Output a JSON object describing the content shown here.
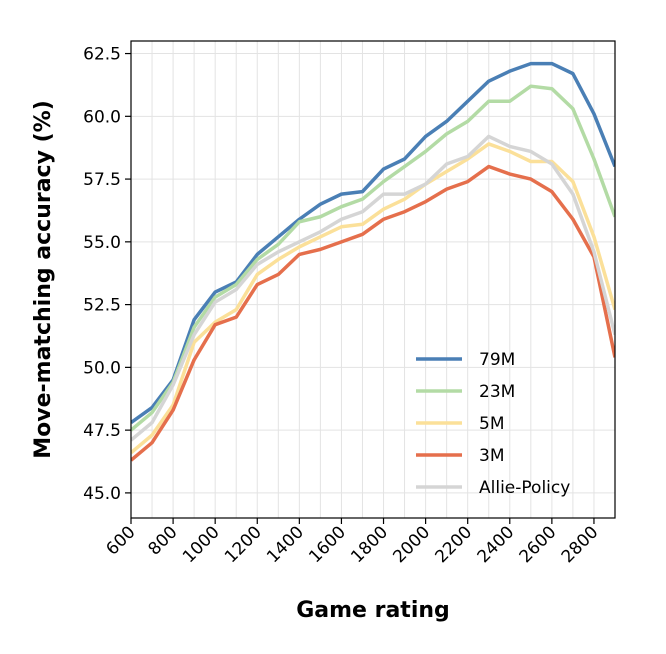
{
  "chart_data": {
    "type": "line",
    "xlabel": "Game rating",
    "ylabel": "Move-matching accuracy (%)",
    "xlim": [
      600,
      2900
    ],
    "ylim": [
      44,
      63
    ],
    "x_ticks": [
      600,
      800,
      1000,
      1200,
      1400,
      1600,
      1800,
      2000,
      2200,
      2400,
      2600,
      2800
    ],
    "y_ticks": [
      "45.0",
      "47.5",
      "50.0",
      "52.5",
      "55.0",
      "57.5",
      "60.0",
      "62.5"
    ],
    "grid": true,
    "legend_position": "lower-right",
    "x": [
      600,
      700,
      800,
      900,
      1000,
      1100,
      1200,
      1300,
      1400,
      1500,
      1600,
      1700,
      1800,
      1900,
      2000,
      2100,
      2200,
      2300,
      2400,
      2500,
      2600,
      2700,
      2800,
      2900
    ],
    "series": [
      {
        "name": "79M",
        "color": "#4a7fb5",
        "values": [
          47.8,
          48.4,
          49.5,
          51.9,
          53.0,
          53.4,
          54.5,
          55.2,
          55.9,
          56.5,
          56.9,
          57.0,
          57.9,
          58.3,
          59.2,
          59.8,
          60.6,
          61.4,
          61.8,
          62.1,
          62.1,
          61.7,
          60.1,
          58.0
        ]
      },
      {
        "name": "23M",
        "color": "#b3dba5",
        "values": [
          47.5,
          48.2,
          49.4,
          51.6,
          52.8,
          53.3,
          54.3,
          54.9,
          55.8,
          56.0,
          56.4,
          56.7,
          57.4,
          58.0,
          58.6,
          59.3,
          59.8,
          60.6,
          60.6,
          61.2,
          61.1,
          60.3,
          58.3,
          56.0
        ]
      },
      {
        "name": "5M",
        "color": "#fbe099",
        "values": [
          46.6,
          47.3,
          48.5,
          51.0,
          51.8,
          52.3,
          53.7,
          54.3,
          54.8,
          55.2,
          55.6,
          55.7,
          56.3,
          56.7,
          57.3,
          57.8,
          58.3,
          58.9,
          58.6,
          58.2,
          58.2,
          57.4,
          55.2,
          52.3
        ]
      },
      {
        "name": "3M",
        "color": "#e56f4c",
        "values": [
          46.3,
          47.0,
          48.3,
          50.3,
          51.7,
          52.0,
          53.3,
          53.7,
          54.5,
          54.7,
          55.0,
          55.3,
          55.9,
          56.2,
          56.6,
          57.1,
          57.4,
          58.0,
          57.7,
          57.5,
          57.0,
          55.9,
          54.4,
          50.4
        ]
      },
      {
        "name": "Allie-Policy",
        "color": "#d5d5d5",
        "values": [
          47.1,
          47.8,
          49.3,
          51.3,
          52.6,
          53.1,
          54.1,
          54.6,
          55.0,
          55.4,
          55.9,
          56.2,
          56.9,
          56.9,
          57.3,
          58.1,
          58.4,
          59.2,
          58.8,
          58.6,
          58.1,
          56.9,
          54.6,
          51.3
        ]
      }
    ]
  }
}
